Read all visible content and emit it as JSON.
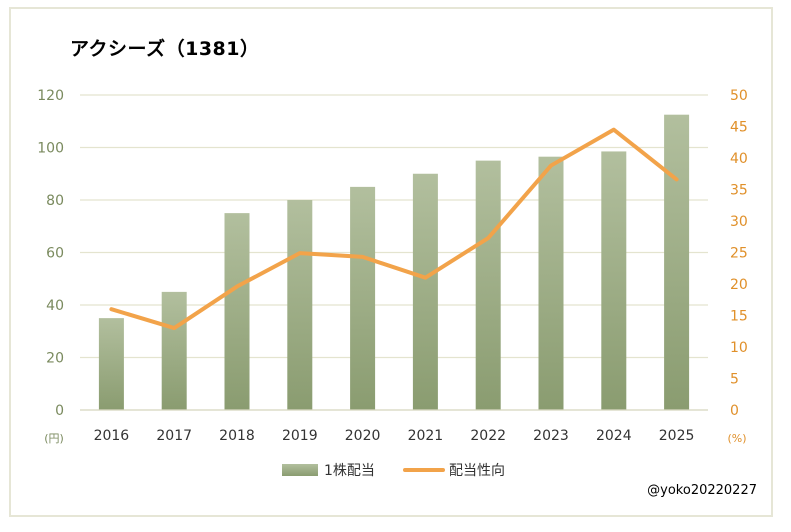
{
  "title": "アクシーズ（1381）",
  "watermark": "@yoko20220227",
  "chart_data": {
    "type": "bar+line",
    "title": "アクシーズ（1381）",
    "categories": [
      "2016",
      "2017",
      "2018",
      "2019",
      "2020",
      "2021",
      "2022",
      "2023",
      "2024",
      "2025"
    ],
    "series": [
      {
        "name": "1株配当",
        "type": "bar",
        "axis": "left",
        "color": "#9cac86",
        "values": [
          35,
          45,
          75,
          80,
          85,
          90,
          95,
          96.5,
          98.5,
          112.5
        ]
      },
      {
        "name": "配当性向",
        "type": "line",
        "axis": "right",
        "color": "#f2a34a",
        "values": [
          16.0,
          13.0,
          19.6,
          24.9,
          24.3,
          21.0,
          27.3,
          38.8,
          44.5,
          36.6
        ]
      }
    ],
    "y_left": {
      "min": 0,
      "max": 120,
      "ticks": [
        "0",
        "20",
        "40",
        "60",
        "80",
        "100",
        "120"
      ],
      "unit": "(円)"
    },
    "y_right": {
      "min": 0,
      "max": 50,
      "ticks": [
        "0",
        "5",
        "10",
        "15",
        "20",
        "25",
        "30",
        "35",
        "40",
        "45",
        "50"
      ],
      "unit": "(%)"
    },
    "grid": true,
    "legend": "bottom"
  }
}
